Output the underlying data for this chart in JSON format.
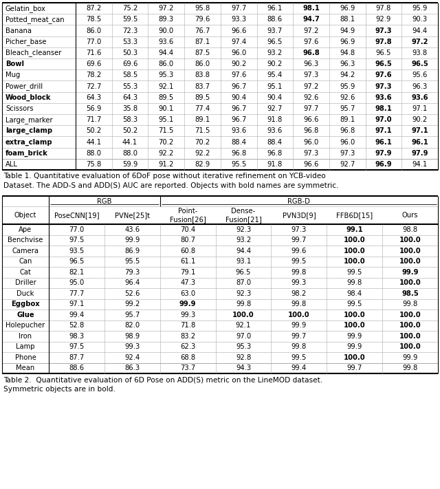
{
  "table1": {
    "caption": "Table 1. Quantitative evaluation of 6DoF pose without iterative refinement on YCB-video\nDataset. The ADD-S and ADD(S) AUC are reported. Objects with bold names are symmetric.",
    "rows": [
      {
        "obj": "Gelatin_box",
        "bold": false,
        "vals": [
          "87.2",
          "75.2",
          "97.2",
          "95.8",
          "97.7",
          "96.1",
          "98.1",
          "96.9",
          "97.8",
          "95.9"
        ],
        "bold_vals": [
          false,
          false,
          false,
          false,
          false,
          false,
          true,
          false,
          false,
          false
        ]
      },
      {
        "obj": "Potted_meat_can",
        "bold": false,
        "vals": [
          "78.5",
          "59.5",
          "89.3",
          "79.6",
          "93.3",
          "88.6",
          "94.7",
          "88.1",
          "92.9",
          "90.3"
        ],
        "bold_vals": [
          false,
          false,
          false,
          false,
          false,
          false,
          true,
          false,
          false,
          false
        ]
      },
      {
        "obj": "Banana",
        "bold": false,
        "vals": [
          "86.0",
          "72.3",
          "90.0",
          "76.7",
          "96.6",
          "93.7",
          "97.2",
          "94.9",
          "97.3",
          "94.4"
        ],
        "bold_vals": [
          false,
          false,
          false,
          false,
          false,
          false,
          false,
          false,
          true,
          false
        ]
      },
      {
        "obj": "Picher_base",
        "bold": false,
        "vals": [
          "77.0",
          "53.3",
          "93.6",
          "87.1",
          "97.4",
          "96.5",
          "97.6",
          "96.9",
          "97.8",
          "97.2"
        ],
        "bold_vals": [
          false,
          false,
          false,
          false,
          false,
          false,
          false,
          false,
          true,
          true
        ]
      },
      {
        "obj": "Bleach_cleanser",
        "bold": false,
        "vals": [
          "71.6",
          "50.3",
          "94.4",
          "87.5",
          "96.0",
          "93.2",
          "96.8",
          "94.8",
          "96.5",
          "93.8"
        ],
        "bold_vals": [
          false,
          false,
          false,
          false,
          false,
          false,
          true,
          false,
          false,
          false
        ]
      },
      {
        "obj": "Bowl",
        "bold": true,
        "vals": [
          "69.6",
          "69.6",
          "86.0",
          "86.0",
          "90.2",
          "90.2",
          "96.3",
          "96.3",
          "96.5",
          "96.5"
        ],
        "bold_vals": [
          false,
          false,
          false,
          false,
          false,
          false,
          false,
          false,
          true,
          true
        ]
      },
      {
        "obj": "Mug",
        "bold": false,
        "vals": [
          "78.2",
          "58.5",
          "95.3",
          "83.8",
          "97.6",
          "95.4",
          "97.3",
          "94.2",
          "97.6",
          "95.6"
        ],
        "bold_vals": [
          false,
          false,
          false,
          false,
          false,
          false,
          false,
          false,
          true,
          false
        ]
      },
      {
        "obj": "Power_drill",
        "bold": false,
        "vals": [
          "72.7",
          "55.3",
          "92.1",
          "83.7",
          "96.7",
          "95.1",
          "97.2",
          "95.9",
          "97.3",
          "96.3"
        ],
        "bold_vals": [
          false,
          false,
          false,
          false,
          false,
          false,
          false,
          false,
          true,
          false
        ]
      },
      {
        "obj": "Wood_block",
        "bold": true,
        "vals": [
          "64.3",
          "64.3",
          "89.5",
          "89.5",
          "90.4",
          "90.4",
          "92.6",
          "92.6",
          "93.6",
          "93.6"
        ],
        "bold_vals": [
          false,
          false,
          false,
          false,
          false,
          false,
          false,
          false,
          true,
          true
        ]
      },
      {
        "obj": "Scissors",
        "bold": false,
        "vals": [
          "56.9",
          "35.8",
          "90.1",
          "77.4",
          "96.7",
          "92.7",
          "97.7",
          "95.7",
          "98.1",
          "97.1"
        ],
        "bold_vals": [
          false,
          false,
          false,
          false,
          false,
          false,
          false,
          false,
          true,
          false
        ]
      },
      {
        "obj": "Large_marker",
        "bold": false,
        "vals": [
          "71.7",
          "58.3",
          "95.1",
          "89.1",
          "96.7",
          "91.8",
          "96.6",
          "89.1",
          "97.0",
          "90.2"
        ],
        "bold_vals": [
          false,
          false,
          false,
          false,
          false,
          false,
          false,
          false,
          true,
          false
        ]
      },
      {
        "obj": "large_clamp",
        "bold": true,
        "vals": [
          "50.2",
          "50.2",
          "71.5",
          "71.5",
          "93.6",
          "93.6",
          "96.8",
          "96.8",
          "97.1",
          "97.1"
        ],
        "bold_vals": [
          false,
          false,
          false,
          false,
          false,
          false,
          false,
          false,
          true,
          true
        ]
      },
      {
        "obj": "extra_clamp",
        "bold": true,
        "vals": [
          "44.1",
          "44.1",
          "70.2",
          "70.2",
          "88.4",
          "88.4",
          "96.0",
          "96.0",
          "96.1",
          "96.1"
        ],
        "bold_vals": [
          false,
          false,
          false,
          false,
          false,
          false,
          false,
          false,
          true,
          true
        ]
      },
      {
        "obj": "foam_brick",
        "bold": true,
        "vals": [
          "88.0",
          "88.0",
          "92.2",
          "92.2",
          "96.8",
          "96.8",
          "97.3",
          "97.3",
          "97.9",
          "97.9"
        ],
        "bold_vals": [
          false,
          false,
          false,
          false,
          false,
          false,
          false,
          false,
          true,
          true
        ]
      },
      {
        "obj": "ALL",
        "bold": false,
        "vals": [
          "75.8",
          "59.9",
          "91.2",
          "82.9",
          "95.5",
          "91.8",
          "96.6",
          "92.7",
          "96.9",
          "94.1"
        ],
        "bold_vals": [
          false,
          false,
          false,
          false,
          false,
          false,
          false,
          false,
          true,
          false
        ],
        "is_last": true
      }
    ]
  },
  "table2": {
    "caption": "Table 2.  Quantitative evaluation of 6D Pose on ADD(S) metric on the LineMOD dataset.\nSymmetric objects are in bold.",
    "headers": [
      "Object",
      "PoseCNN[19]",
      "PVNe[25]t",
      "Point-\nFusion[26]",
      "Dense-\nFusion[21]",
      "PVN3D[9]",
      "FFB6D[15]",
      "Ours"
    ],
    "rows": [
      {
        "obj": "Ape",
        "bold": false,
        "vals": [
          "77.0",
          "43.6",
          "70.4",
          "92.3",
          "97.3",
          "99.1",
          "98.8"
        ],
        "bold_vals": [
          false,
          false,
          false,
          false,
          false,
          true,
          false
        ]
      },
      {
        "obj": "Benchvise",
        "bold": false,
        "vals": [
          "97.5",
          "99.9",
          "80.7",
          "93.2",
          "99.7",
          "100.0",
          "100.0"
        ],
        "bold_vals": [
          false,
          false,
          false,
          false,
          false,
          true,
          true
        ]
      },
      {
        "obj": "Camera",
        "bold": false,
        "vals": [
          "93.5",
          "86.9",
          "60.8",
          "94.4",
          "99.6",
          "100.0",
          "100.0"
        ],
        "bold_vals": [
          false,
          false,
          false,
          false,
          false,
          true,
          true
        ]
      },
      {
        "obj": "Can",
        "bold": false,
        "vals": [
          "96.5",
          "95.5",
          "61.1",
          "93.1",
          "99.5",
          "100.0",
          "100.0"
        ],
        "bold_vals": [
          false,
          false,
          false,
          false,
          false,
          true,
          true
        ]
      },
      {
        "obj": "Cat",
        "bold": false,
        "vals": [
          "82.1",
          "79.3",
          "79.1",
          "96.5",
          "99.8",
          "99.5",
          "99.9"
        ],
        "bold_vals": [
          false,
          false,
          false,
          false,
          false,
          false,
          true
        ]
      },
      {
        "obj": "Driller",
        "bold": false,
        "vals": [
          "95.0",
          "96.4",
          "47.3",
          "87.0",
          "99.3",
          "99.8",
          "100.0"
        ],
        "bold_vals": [
          false,
          false,
          false,
          false,
          false,
          false,
          true
        ]
      },
      {
        "obj": "Duck",
        "bold": false,
        "vals": [
          "77.7",
          "52.6",
          "63.0",
          "92.3",
          "98.2",
          "98.4",
          "98.5"
        ],
        "bold_vals": [
          false,
          false,
          false,
          false,
          false,
          false,
          true
        ]
      },
      {
        "obj": "Eggbox",
        "bold": true,
        "vals": [
          "97.1",
          "99.2",
          "99.9",
          "99.8",
          "99.8",
          "99.5",
          "99.8"
        ],
        "bold_vals": [
          false,
          false,
          true,
          false,
          false,
          false,
          false
        ]
      },
      {
        "obj": "Glue",
        "bold": true,
        "vals": [
          "99.4",
          "95.7",
          "99.3",
          "100.0",
          "100.0",
          "100.0",
          "100.0"
        ],
        "bold_vals": [
          false,
          false,
          false,
          true,
          true,
          true,
          true
        ]
      },
      {
        "obj": "Holepucher",
        "bold": false,
        "vals": [
          "52.8",
          "82.0",
          "71.8",
          "92.1",
          "99.9",
          "100.0",
          "100.0"
        ],
        "bold_vals": [
          false,
          false,
          false,
          false,
          false,
          true,
          true
        ]
      },
      {
        "obj": "Iron",
        "bold": false,
        "vals": [
          "98.3",
          "98.9",
          "83.2",
          "97.0",
          "99.7",
          "99.9",
          "100.0"
        ],
        "bold_vals": [
          false,
          false,
          false,
          false,
          false,
          false,
          true
        ]
      },
      {
        "obj": "Lamp",
        "bold": false,
        "vals": [
          "97.5",
          "99.3",
          "62.3",
          "95.3",
          "99.8",
          "99.9",
          "100.0"
        ],
        "bold_vals": [
          false,
          false,
          false,
          false,
          false,
          false,
          true
        ]
      },
      {
        "obj": "Phone",
        "bold": false,
        "vals": [
          "87.7",
          "92.4",
          "68.8",
          "92.8",
          "99.5",
          "100.0",
          "99.9"
        ],
        "bold_vals": [
          false,
          false,
          false,
          false,
          false,
          true,
          false
        ]
      },
      {
        "obj": "Mean",
        "bold": false,
        "vals": [
          "88.6",
          "86.3",
          "73.7",
          "94.3",
          "99.4",
          "99.7",
          "99.8"
        ],
        "bold_vals": [
          false,
          false,
          false,
          false,
          false,
          false,
          false
        ],
        "is_last": true
      }
    ]
  },
  "bg_color": "#ffffff",
  "font_size": 7.2
}
